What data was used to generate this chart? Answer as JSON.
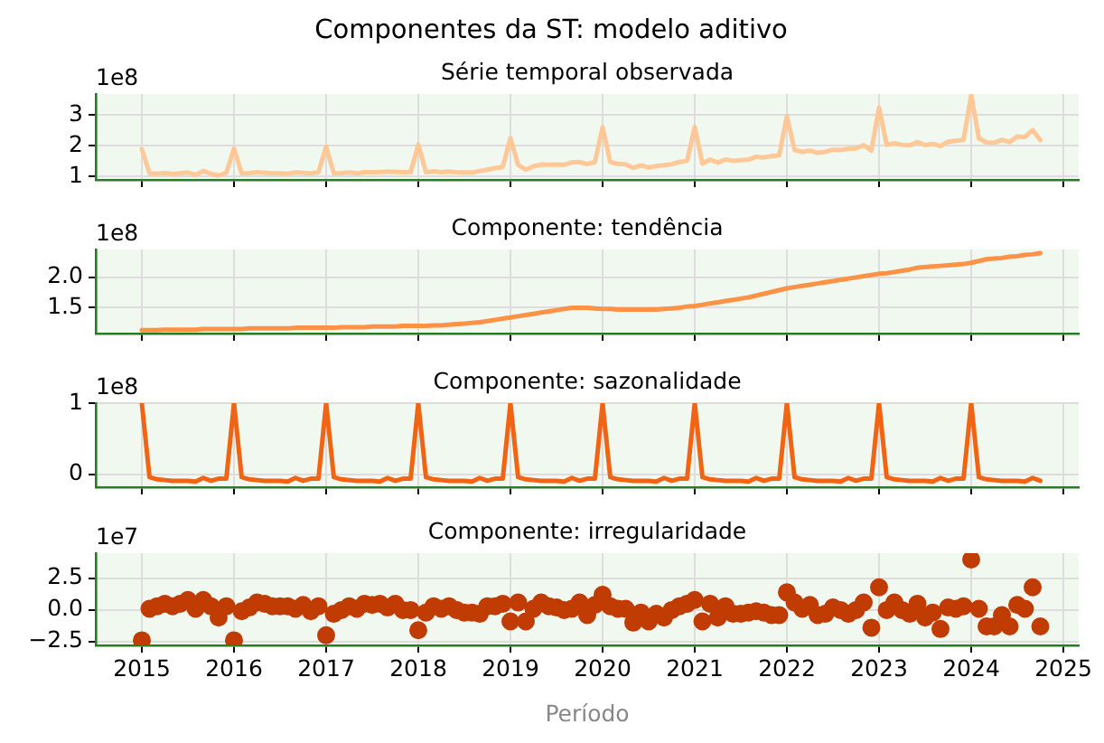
{
  "chart_data": [
    {
      "type": "line",
      "title": "Componentes da ST: modelo aditivo",
      "subtitle": "Série temporal observada",
      "annotations": [
        "1e8"
      ],
      "color": "#ffc896",
      "grid": true,
      "tick_labels": "y",
      "xlim": [
        "2014-07",
        "2025-03"
      ],
      "xticks": [
        "2015",
        "2016",
        "2017",
        "2018",
        "2019",
        "2020",
        "2021",
        "2022",
        "2023",
        "2024",
        "2025"
      ],
      "ylim": [
        0.89,
        3.68
      ],
      "yticks": [
        1,
        2,
        3
      ],
      "x": [
        "2015-01",
        "2015-02",
        "2015-03",
        "2015-04",
        "2015-05",
        "2015-06",
        "2015-07",
        "2015-08",
        "2015-09",
        "2015-10",
        "2015-11",
        "2015-12",
        "2016-01",
        "2016-02",
        "2016-03",
        "2016-04",
        "2016-05",
        "2016-06",
        "2016-07",
        "2016-08",
        "2016-09",
        "2016-10",
        "2016-11",
        "2016-12",
        "2017-01",
        "2017-02",
        "2017-03",
        "2017-04",
        "2017-05",
        "2017-06",
        "2017-07",
        "2017-08",
        "2017-09",
        "2017-10",
        "2017-11",
        "2017-12",
        "2018-01",
        "2018-02",
        "2018-03",
        "2018-04",
        "2018-05",
        "2018-06",
        "2018-07",
        "2018-08",
        "2018-09",
        "2018-10",
        "2018-11",
        "2018-12",
        "2019-01",
        "2019-02",
        "2019-03",
        "2019-04",
        "2019-05",
        "2019-06",
        "2019-07",
        "2019-08",
        "2019-09",
        "2019-10",
        "2019-11",
        "2019-12",
        "2020-01",
        "2020-02",
        "2020-03",
        "2020-04",
        "2020-05",
        "2020-06",
        "2020-07",
        "2020-08",
        "2020-09",
        "2020-10",
        "2020-11",
        "2020-12",
        "2021-01",
        "2021-02",
        "2021-03",
        "2021-04",
        "2021-05",
        "2021-06",
        "2021-07",
        "2021-08",
        "2021-09",
        "2021-10",
        "2021-11",
        "2021-12",
        "2022-01",
        "2022-02",
        "2022-03",
        "2022-04",
        "2022-05",
        "2022-06",
        "2022-07",
        "2022-08",
        "2022-09",
        "2022-10",
        "2022-11",
        "2022-12",
        "2023-01",
        "2023-02",
        "2023-03",
        "2023-04",
        "2023-05",
        "2023-06",
        "2023-07",
        "2023-08",
        "2023-09",
        "2023-10",
        "2023-11",
        "2023-12",
        "2024-01",
        "2024-02",
        "2024-03",
        "2024-04",
        "2024-05",
        "2024-06",
        "2024-07",
        "2024-08",
        "2024-09",
        "2024-10"
      ],
      "values": [
        1.89,
        1.1,
        1.09,
        1.11,
        1.08,
        1.1,
        1.13,
        1.05,
        1.18,
        1.09,
        1.03,
        1.12,
        1.91,
        1.1,
        1.11,
        1.14,
        1.12,
        1.1,
        1.1,
        1.09,
        1.13,
        1.12,
        1.1,
        1.14,
        1.97,
        1.1,
        1.11,
        1.13,
        1.1,
        1.14,
        1.14,
        1.14,
        1.16,
        1.15,
        1.14,
        1.14,
        2.04,
        1.14,
        1.17,
        1.14,
        1.16,
        1.14,
        1.13,
        1.13,
        1.18,
        1.22,
        1.27,
        1.31,
        2.25,
        1.38,
        1.22,
        1.33,
        1.39,
        1.38,
        1.39,
        1.38,
        1.46,
        1.47,
        1.4,
        1.47,
        2.6,
        1.47,
        1.41,
        1.4,
        1.28,
        1.36,
        1.29,
        1.34,
        1.37,
        1.4,
        1.47,
        1.51,
        2.61,
        1.42,
        1.55,
        1.45,
        1.55,
        1.51,
        1.53,
        1.55,
        1.64,
        1.62,
        1.66,
        1.69,
        2.96,
        1.86,
        1.8,
        1.84,
        1.77,
        1.8,
        1.87,
        1.86,
        1.9,
        1.91,
        2.02,
        1.84,
        3.24,
        2.03,
        2.08,
        2.03,
        2.01,
        2.12,
        2.02,
        2.06,
        1.99,
        2.13,
        2.16,
        2.19,
        3.64,
        2.24,
        2.1,
        2.1,
        2.19,
        2.12,
        2.3,
        2.28,
        2.51,
        2.18
      ]
    },
    {
      "type": "line",
      "title": "Componente: tendência",
      "annotations": [
        "1e8"
      ],
      "color": "#fd9246",
      "grid": true,
      "tick_labels": "y",
      "xlim": [
        "2014-07",
        "2025-03"
      ],
      "xticks": [
        "2015",
        "2016",
        "2017",
        "2018",
        "2019",
        "2020",
        "2021",
        "2022",
        "2023",
        "2024",
        "2025"
      ],
      "ylim": [
        1.075,
        2.46
      ],
      "yticks": [
        {
          "value": 1.5,
          "label": "1.5"
        },
        {
          "value": 2,
          "label": "2.0"
        }
      ],
      "x": [
        "2015-01",
        "2015-02",
        "2015-03",
        "2015-04",
        "2015-05",
        "2015-06",
        "2015-07",
        "2015-08",
        "2015-09",
        "2015-10",
        "2015-11",
        "2015-12",
        "2016-01",
        "2016-02",
        "2016-03",
        "2016-04",
        "2016-05",
        "2016-06",
        "2016-07",
        "2016-08",
        "2016-09",
        "2016-10",
        "2016-11",
        "2016-12",
        "2017-01",
        "2017-02",
        "2017-03",
        "2017-04",
        "2017-05",
        "2017-06",
        "2017-07",
        "2017-08",
        "2017-09",
        "2017-10",
        "2017-11",
        "2017-12",
        "2018-01",
        "2018-02",
        "2018-03",
        "2018-04",
        "2018-05",
        "2018-06",
        "2018-07",
        "2018-08",
        "2018-09",
        "2018-10",
        "2018-11",
        "2018-12",
        "2019-01",
        "2019-02",
        "2019-03",
        "2019-04",
        "2019-05",
        "2019-06",
        "2019-07",
        "2019-08",
        "2019-09",
        "2019-10",
        "2019-11",
        "2019-12",
        "2020-01",
        "2020-02",
        "2020-03",
        "2020-04",
        "2020-05",
        "2020-06",
        "2020-07",
        "2020-08",
        "2020-09",
        "2020-10",
        "2020-11",
        "2020-12",
        "2021-01",
        "2021-02",
        "2021-03",
        "2021-04",
        "2021-05",
        "2021-06",
        "2021-07",
        "2021-08",
        "2021-09",
        "2021-10",
        "2021-11",
        "2021-12",
        "2022-01",
        "2022-02",
        "2022-03",
        "2022-04",
        "2022-05",
        "2022-06",
        "2022-07",
        "2022-08",
        "2022-09",
        "2022-10",
        "2022-11",
        "2022-12",
        "2023-01",
        "2023-02",
        "2023-03",
        "2023-04",
        "2023-05",
        "2023-06",
        "2023-07",
        "2023-08",
        "2023-09",
        "2023-10",
        "2023-11",
        "2023-12",
        "2024-01",
        "2024-02",
        "2024-03",
        "2024-04",
        "2024-05",
        "2024-06",
        "2024-07",
        "2024-08",
        "2024-09",
        "2024-10"
      ],
      "values": [
        1.13,
        1.13,
        1.13,
        1.14,
        1.14,
        1.14,
        1.14,
        1.14,
        1.15,
        1.15,
        1.15,
        1.15,
        1.15,
        1.15,
        1.16,
        1.16,
        1.16,
        1.16,
        1.16,
        1.16,
        1.17,
        1.17,
        1.17,
        1.17,
        1.17,
        1.17,
        1.18,
        1.18,
        1.18,
        1.18,
        1.19,
        1.19,
        1.19,
        1.19,
        1.2,
        1.2,
        1.2,
        1.2,
        1.21,
        1.21,
        1.22,
        1.23,
        1.24,
        1.25,
        1.26,
        1.28,
        1.3,
        1.32,
        1.34,
        1.36,
        1.38,
        1.4,
        1.42,
        1.44,
        1.46,
        1.48,
        1.5,
        1.5,
        1.5,
        1.49,
        1.48,
        1.48,
        1.47,
        1.47,
        1.47,
        1.47,
        1.47,
        1.47,
        1.48,
        1.49,
        1.5,
        1.52,
        1.53,
        1.55,
        1.57,
        1.59,
        1.61,
        1.63,
        1.65,
        1.67,
        1.7,
        1.73,
        1.76,
        1.79,
        1.82,
        1.84,
        1.86,
        1.88,
        1.9,
        1.92,
        1.94,
        1.96,
        1.98,
        2.0,
        2.02,
        2.04,
        2.06,
        2.07,
        2.09,
        2.11,
        2.13,
        2.16,
        2.17,
        2.18,
        2.19,
        2.2,
        2.21,
        2.22,
        2.24,
        2.27,
        2.3,
        2.31,
        2.32,
        2.34,
        2.35,
        2.37,
        2.38,
        2.4
      ]
    },
    {
      "type": "line",
      "title": "Componente: sazonalidade",
      "annotations": [
        "1e8"
      ],
      "color": "#f06414",
      "grid": true,
      "tick_labels": "y",
      "xlim": [
        "2014-07",
        "2025-03"
      ],
      "xticks": [
        "2015",
        "2016",
        "2017",
        "2018",
        "2019",
        "2020",
        "2021",
        "2022",
        "2023",
        "2024",
        "2025"
      ],
      "ylim": [
        -0.18,
        1.0
      ],
      "yticks": [
        0,
        1
      ],
      "x": [
        "2015-01",
        "2015-02",
        "2015-03",
        "2015-04",
        "2015-05",
        "2015-06",
        "2015-07",
        "2015-08",
        "2015-09",
        "2015-10",
        "2015-11",
        "2015-12",
        "2016-01",
        "2016-02",
        "2016-03",
        "2016-04",
        "2016-05",
        "2016-06",
        "2016-07",
        "2016-08",
        "2016-09",
        "2016-10",
        "2016-11",
        "2016-12",
        "2017-01",
        "2017-02",
        "2017-03",
        "2017-04",
        "2017-05",
        "2017-06",
        "2017-07",
        "2017-08",
        "2017-09",
        "2017-10",
        "2017-11",
        "2017-12",
        "2018-01",
        "2018-02",
        "2018-03",
        "2018-04",
        "2018-05",
        "2018-06",
        "2018-07",
        "2018-08",
        "2018-09",
        "2018-10",
        "2018-11",
        "2018-12",
        "2019-01",
        "2019-02",
        "2019-03",
        "2019-04",
        "2019-05",
        "2019-06",
        "2019-07",
        "2019-08",
        "2019-09",
        "2019-10",
        "2019-11",
        "2019-12",
        "2020-01",
        "2020-02",
        "2020-03",
        "2020-04",
        "2020-05",
        "2020-06",
        "2020-07",
        "2020-08",
        "2020-09",
        "2020-10",
        "2020-11",
        "2020-12",
        "2021-01",
        "2021-02",
        "2021-03",
        "2021-04",
        "2021-05",
        "2021-06",
        "2021-07",
        "2021-08",
        "2021-09",
        "2021-10",
        "2021-11",
        "2021-12",
        "2022-01",
        "2022-02",
        "2022-03",
        "2022-04",
        "2022-05",
        "2022-06",
        "2022-07",
        "2022-08",
        "2022-09",
        "2022-10",
        "2022-11",
        "2022-12",
        "2023-01",
        "2023-02",
        "2023-03",
        "2023-04",
        "2023-05",
        "2023-06",
        "2023-07",
        "2023-08",
        "2023-09",
        "2023-10",
        "2023-11",
        "2023-12",
        "2024-01",
        "2024-02",
        "2024-03",
        "2024-04",
        "2024-05",
        "2024-06",
        "2024-07",
        "2024-08",
        "2024-09",
        "2024-10"
      ],
      "values": [
        1.0,
        -0.04,
        -0.07,
        -0.08,
        -0.09,
        -0.09,
        -0.09,
        -0.1,
        -0.05,
        -0.09,
        -0.06,
        -0.06,
        1.0,
        -0.04,
        -0.07,
        -0.08,
        -0.09,
        -0.09,
        -0.09,
        -0.1,
        -0.05,
        -0.09,
        -0.06,
        -0.06,
        1.0,
        -0.04,
        -0.07,
        -0.08,
        -0.09,
        -0.09,
        -0.09,
        -0.1,
        -0.05,
        -0.09,
        -0.06,
        -0.06,
        1.0,
        -0.04,
        -0.07,
        -0.08,
        -0.09,
        -0.09,
        -0.09,
        -0.1,
        -0.05,
        -0.09,
        -0.06,
        -0.06,
        1.0,
        -0.04,
        -0.07,
        -0.08,
        -0.09,
        -0.09,
        -0.09,
        -0.1,
        -0.05,
        -0.09,
        -0.06,
        -0.06,
        1.0,
        -0.04,
        -0.07,
        -0.08,
        -0.09,
        -0.09,
        -0.09,
        -0.1,
        -0.05,
        -0.09,
        -0.06,
        -0.06,
        1.0,
        -0.04,
        -0.07,
        -0.08,
        -0.09,
        -0.09,
        -0.09,
        -0.1,
        -0.05,
        -0.09,
        -0.06,
        -0.06,
        1.0,
        -0.04,
        -0.07,
        -0.08,
        -0.09,
        -0.09,
        -0.09,
        -0.1,
        -0.05,
        -0.09,
        -0.06,
        -0.06,
        1.0,
        -0.04,
        -0.07,
        -0.08,
        -0.09,
        -0.09,
        -0.09,
        -0.1,
        -0.05,
        -0.09,
        -0.06,
        -0.06,
        1.0,
        -0.04,
        -0.07,
        -0.08,
        -0.09,
        -0.09,
        -0.09,
        -0.1,
        -0.05,
        -0.09
      ]
    },
    {
      "type": "scatter",
      "title": "Componente: irregularidade",
      "xlabel": "Período",
      "annotations": [
        "1e7"
      ],
      "color": "#c03c02",
      "marker": "circle",
      "grid": true,
      "xlim": [
        "2014-07",
        "2025-03"
      ],
      "xticks": [
        "2015",
        "2016",
        "2017",
        "2018",
        "2019",
        "2020",
        "2021",
        "2022",
        "2023",
        "2024",
        "2025"
      ],
      "ylim": [
        -2.8,
        4.5
      ],
      "yticks": [
        {
          "value": -2.5,
          "label": "−2.5"
        },
        {
          "value": 0,
          "label": "0.0"
        },
        2.5
      ],
      "x": [
        "2015-01",
        "2015-02",
        "2015-03",
        "2015-04",
        "2015-05",
        "2015-06",
        "2015-07",
        "2015-08",
        "2015-09",
        "2015-10",
        "2015-11",
        "2015-12",
        "2016-01",
        "2016-02",
        "2016-03",
        "2016-04",
        "2016-05",
        "2016-06",
        "2016-07",
        "2016-08",
        "2016-09",
        "2016-10",
        "2016-11",
        "2016-12",
        "2017-01",
        "2017-02",
        "2017-03",
        "2017-04",
        "2017-05",
        "2017-06",
        "2017-07",
        "2017-08",
        "2017-09",
        "2017-10",
        "2017-11",
        "2017-12",
        "2018-01",
        "2018-02",
        "2018-03",
        "2018-04",
        "2018-05",
        "2018-06",
        "2018-07",
        "2018-08",
        "2018-09",
        "2018-10",
        "2018-11",
        "2018-12",
        "2019-01",
        "2019-02",
        "2019-03",
        "2019-04",
        "2019-05",
        "2019-06",
        "2019-07",
        "2019-08",
        "2019-09",
        "2019-10",
        "2019-11",
        "2019-12",
        "2020-01",
        "2020-02",
        "2020-03",
        "2020-04",
        "2020-05",
        "2020-06",
        "2020-07",
        "2020-08",
        "2020-09",
        "2020-10",
        "2020-11",
        "2020-12",
        "2021-01",
        "2021-02",
        "2021-03",
        "2021-04",
        "2021-05",
        "2021-06",
        "2021-07",
        "2021-08",
        "2021-09",
        "2021-10",
        "2021-11",
        "2021-12",
        "2022-01",
        "2022-02",
        "2022-03",
        "2022-04",
        "2022-05",
        "2022-06",
        "2022-07",
        "2022-08",
        "2022-09",
        "2022-10",
        "2022-11",
        "2022-12",
        "2023-01",
        "2023-02",
        "2023-03",
        "2023-04",
        "2023-05",
        "2023-06",
        "2023-07",
        "2023-08",
        "2023-09",
        "2023-10",
        "2023-11",
        "2023-12",
        "2024-01",
        "2024-02",
        "2024-03",
        "2024-04",
        "2024-05",
        "2024-06",
        "2024-07",
        "2024-08",
        "2024-09",
        "2024-10"
      ],
      "values": [
        -2.4,
        0.1,
        0.3,
        0.5,
        0.3,
        0.5,
        0.8,
        0.1,
        0.8,
        0.3,
        -0.6,
        0.3,
        -2.4,
        -0.1,
        0.2,
        0.6,
        0.5,
        0.3,
        0.3,
        0.3,
        0.1,
        0.4,
        -0.1,
        0.3,
        -2.0,
        -0.3,
        0,
        0.3,
        0.1,
        0.5,
        0.4,
        0.5,
        0.2,
        0.5,
        0,
        0,
        -1.6,
        -0.2,
        0.3,
        0.1,
        0.3,
        0,
        -0.2,
        -0.2,
        -0.3,
        0.3,
        0.3,
        0.5,
        -0.9,
        0.6,
        -0.9,
        0.1,
        0.6,
        0.3,
        0.2,
        0,
        0.1,
        0.6,
        -0.4,
        0.4,
        1.2,
        0.3,
        0.1,
        0.1,
        -1.0,
        -0.2,
        -0.9,
        -0.3,
        -0.6,
        0,
        0.3,
        0.5,
        0.8,
        -0.9,
        0.5,
        -0.6,
        0.3,
        -0.3,
        -0.3,
        -0.2,
        -0.1,
        -0.2,
        -0.4,
        -0.4,
        1.4,
        0.6,
        0.1,
        0.4,
        -0.4,
        -0.3,
        0.2,
        0,
        -0.3,
        0,
        0.6,
        -1.4,
        1.8,
        0,
        0.6,
        0,
        -0.3,
        0.5,
        -0.6,
        -0.2,
        -1.5,
        0.2,
        0.1,
        0.3,
        4.0,
        0.1,
        -1.3,
        -1.3,
        -0.4,
        -1.3,
        0.4,
        0.1,
        1.8,
        -1.3
      ]
    }
  ]
}
